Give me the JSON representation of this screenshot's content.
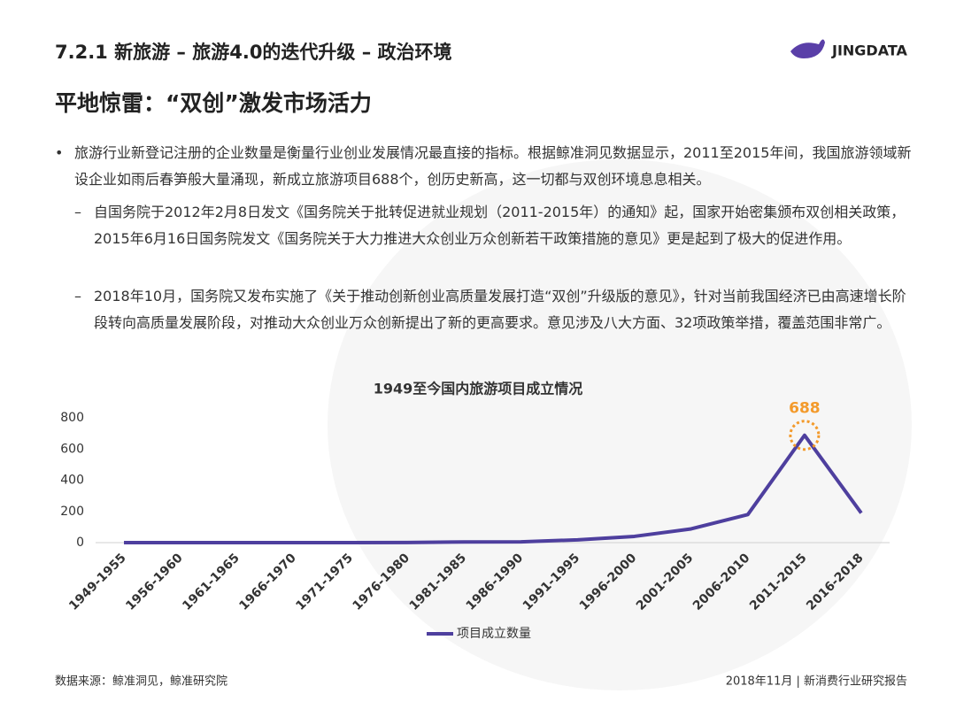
{
  "header": {
    "title": "7.2.1 新旅游 – 旅游4.0的迭代升级 – 政治环境",
    "logo": "JINGDATA"
  },
  "heading": "平地惊雷：“双创”激发市场活力",
  "bullets": [
    {
      "text": "旅游行业新登记注册的企业数量是衡量行业创业发展情况最直接的指标。根据鲸准洞见数据显示，2011至2015年间，我国旅游领域新设企业如雨后春笋般大量涌现，新成立旅游项目688个，创历史新高，这一切都与双创环境息息相关。",
      "sub": [
        "自国务院于2012年2月8日发文《国务院关于批转促进就业规划（2011-2015年）的通知》起，国家开始密集颁布双创相关政策，2015年6月16日国务院发文《国务院关于大力推进大众创业万众创新若干政策措施的意见》更是起到了极大的促进作用。",
        "2018年10月，国务院又发布实施了《关于推动创新创业高质量发展打造“双创”升级版的意见》，针对当前我国经济已由高速增长阶段转向高质量发展阶段，对推动大众创业万众创新提出了新的更高要求。意见涉及八大方面、32项政策举措，覆盖范围非常广。"
      ]
    }
  ],
  "chart_data": {
    "type": "line",
    "title": "1949至今国内旅游项目成立情况",
    "categories": [
      "1949-1955",
      "1956-1960",
      "1961-1965",
      "1966-1970",
      "1971-1975",
      "1976-1980",
      "1981-1985",
      "1986-1990",
      "1991-1995",
      "1996-2000",
      "2001-2005",
      "2006-2010",
      "2011-2015",
      "2016-2018"
    ],
    "series": [
      {
        "name": "项目成立数量",
        "color": "#4e3f9e",
        "values": [
          0,
          0,
          0,
          0,
          0,
          1,
          4,
          5,
          18,
          40,
          88,
          180,
          688,
          190
        ]
      }
    ],
    "ylim": [
      0,
      800
    ],
    "yticks": [
      0,
      200,
      400,
      600,
      800
    ],
    "grid": false,
    "annotations": [
      {
        "x": "2011-2015",
        "y": 688,
        "color": "#f39a2b"
      }
    ],
    "legend": "bottom"
  },
  "footer": {
    "source": "数据来源：鲸准洞见，鲸准研究院",
    "right": "2018年11月 | 新消费行业研究报告"
  }
}
